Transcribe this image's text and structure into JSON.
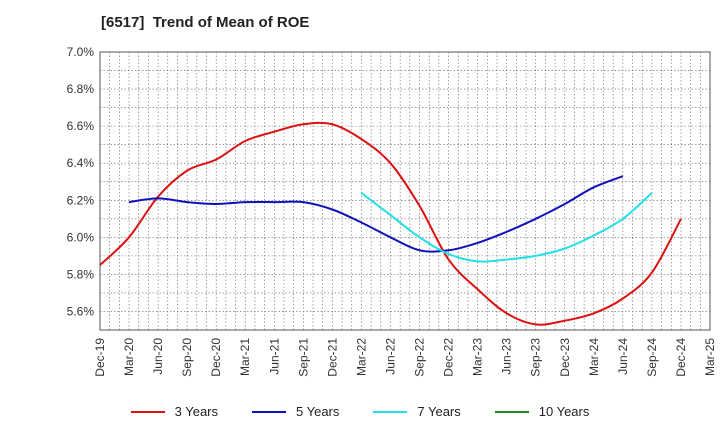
{
  "title": "[6517]  Trend of Mean of ROE",
  "colors": {
    "3 Years": "#dd1111",
    "5 Years": "#1111bb",
    "7 Years": "#22e0e8",
    "10 Years": "#228822",
    "grid": "#666666",
    "axis": "#333333"
  },
  "chart_data": {
    "type": "line",
    "title": "[6517]  Trend of Mean of ROE",
    "xlabel": "",
    "ylabel": "",
    "x_ticks": [
      "Dec-19",
      "Mar-20",
      "Jun-20",
      "Sep-20",
      "Dec-20",
      "Mar-21",
      "Jun-21",
      "Sep-21",
      "Dec-21",
      "Mar-22",
      "Jun-22",
      "Sep-22",
      "Dec-22",
      "Mar-23",
      "Jun-23",
      "Sep-23",
      "Dec-23",
      "Mar-24",
      "Jun-24",
      "Sep-24",
      "Dec-24",
      "Mar-25"
    ],
    "y_ticks": [
      "5.6%",
      "5.8%",
      "6.0%",
      "6.2%",
      "6.4%",
      "6.6%",
      "6.8%",
      "7.0%"
    ],
    "ylim": [
      5.5,
      7.0
    ],
    "grid": true,
    "legend_position": "bottom",
    "series": [
      {
        "name": "3 Years",
        "start_index": 0,
        "values": [
          5.85,
          6.0,
          6.22,
          6.36,
          6.42,
          6.52,
          6.57,
          6.61,
          6.61,
          6.53,
          6.4,
          6.17,
          5.88,
          5.72,
          5.59,
          5.53,
          5.55,
          5.59,
          5.67,
          5.81,
          6.1
        ]
      },
      {
        "name": "5 Years",
        "start_index": 1,
        "values": [
          6.19,
          6.21,
          6.19,
          6.18,
          6.19,
          6.19,
          6.19,
          6.15,
          6.08,
          6.0,
          5.93,
          5.93,
          5.97,
          6.03,
          6.1,
          6.18,
          6.27,
          6.33
        ]
      },
      {
        "name": "7 Years",
        "start_index": 9,
        "values": [
          6.24,
          6.12,
          6.0,
          5.91,
          5.87,
          5.88,
          5.9,
          5.94,
          6.01,
          6.1,
          6.24
        ]
      },
      {
        "name": "10 Years",
        "start_index": 0,
        "values": []
      }
    ]
  }
}
